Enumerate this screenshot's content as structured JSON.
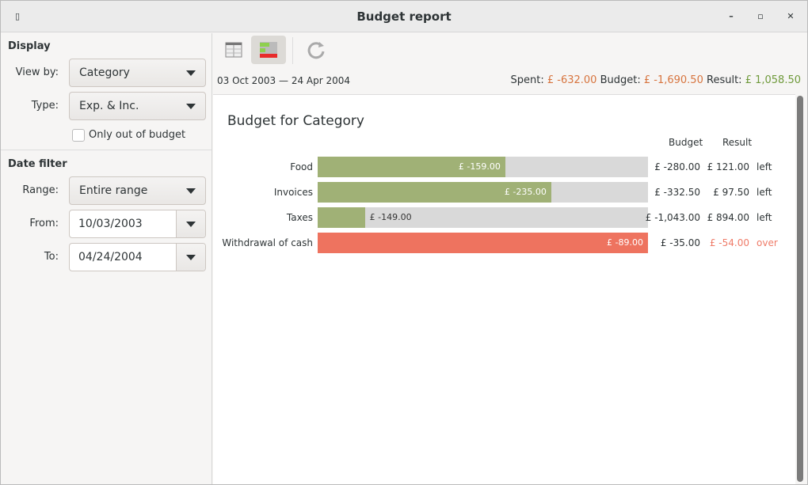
{
  "window": {
    "title": "Budget report"
  },
  "sidebar": {
    "display_heading": "Display",
    "view_by_label": "View by:",
    "view_by_value": "Category",
    "type_label": "Type:",
    "type_value": "Exp. & Inc.",
    "only_out_label": "Only out of budget",
    "only_out_checked": false,
    "date_filter_heading": "Date filter",
    "range_label": "Range:",
    "range_value": "Entire range",
    "from_label": "From:",
    "from_value": "10/03/2003",
    "to_label": "To:",
    "to_value": "04/24/2004"
  },
  "toolbar": {
    "icons": [
      "table-view-icon",
      "bar-view-icon",
      "refresh-icon"
    ],
    "active": "bar-view-icon"
  },
  "summary": {
    "date_range": "03 Oct 2003 — 24 Apr 2004",
    "spent_label": "Spent:",
    "spent": "£ -632.00",
    "budget_label": "Budget:",
    "budget": "£ -1,690.50",
    "result_label": "Result:",
    "result": "£ 1,058.50"
  },
  "report": {
    "title": "Budget for Category",
    "col_budget": "Budget",
    "col_result": "Result",
    "rows": [
      {
        "category": "Food",
        "spent": "£ -159.00",
        "fraction": 0.568,
        "budget": "£ -280.00",
        "result": "£ 121.00",
        "status": "left",
        "over": false
      },
      {
        "category": "Invoices",
        "spent": "£ -235.00",
        "fraction": 0.707,
        "budget": "£ -332.50",
        "result": "£ 97.50",
        "status": "left",
        "over": false
      },
      {
        "category": "Taxes",
        "spent": "£ -149.00",
        "fraction": 0.143,
        "budget": "£ -1,043.00",
        "result": "£ 894.00",
        "status": "left",
        "over": false
      },
      {
        "category": "Withdrawal of cash",
        "spent": "£ -89.00",
        "fraction": 1.0,
        "budget": "£ -35.00",
        "result": "£ -54.00",
        "status": "over",
        "over": true
      }
    ]
  },
  "colors": {
    "bar_ok": "#a0b176",
    "bar_over": "#ee735f",
    "track": "#d9d9d9",
    "spent": "#d7743e",
    "result_positive": "#6f9a3b"
  }
}
